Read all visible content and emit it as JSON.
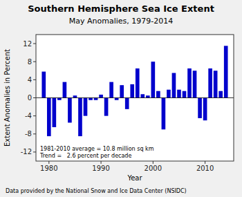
{
  "chart_data": {
    "type": "bar",
    "title": "Southern Hemisphere Sea Ice Extent",
    "subtitle": "May Anomalies, 1979-2014",
    "x_label": "Year",
    "y_label": "Extent Anomalies in Percent",
    "annotations": [
      "1981-2010 average = 10.8 million sq km",
      "Trend =   2.6 percent per decade"
    ],
    "footnote": "Data provided by the National Snow and Ice Data Center (NSIDC)",
    "x": [
      1979,
      1980,
      1981,
      1982,
      1983,
      1984,
      1985,
      1986,
      1987,
      1988,
      1989,
      1990,
      1991,
      1992,
      1993,
      1994,
      1995,
      1996,
      1997,
      1998,
      1999,
      2000,
      2001,
      2002,
      2003,
      2004,
      2005,
      2006,
      2007,
      2008,
      2009,
      2010,
      2011,
      2012,
      2013,
      2014
    ],
    "values": [
      5.8,
      -8.5,
      -6.5,
      -0.5,
      3.5,
      -5.5,
      0.5,
      -8.5,
      -4.0,
      -0.5,
      -0.5,
      0.7,
      -4.0,
      3.5,
      -0.5,
      2.8,
      -2.5,
      3.0,
      6.5,
      0.8,
      0.5,
      8.0,
      1.5,
      -7.0,
      1.8,
      5.5,
      1.8,
      1.5,
      6.5,
      6.0,
      -4.5,
      -5.0,
      6.5,
      6.0,
      1.5,
      11.5
    ],
    "color": "#0000CC",
    "xlim": [
      1977.5,
      2015.5
    ],
    "xticks": [
      1980,
      1990,
      2000,
      2010
    ],
    "ylim": [
      -14,
      14
    ],
    "yticks": [
      -12,
      -8,
      -4,
      0,
      4,
      8,
      12
    ],
    "grid": false
  }
}
